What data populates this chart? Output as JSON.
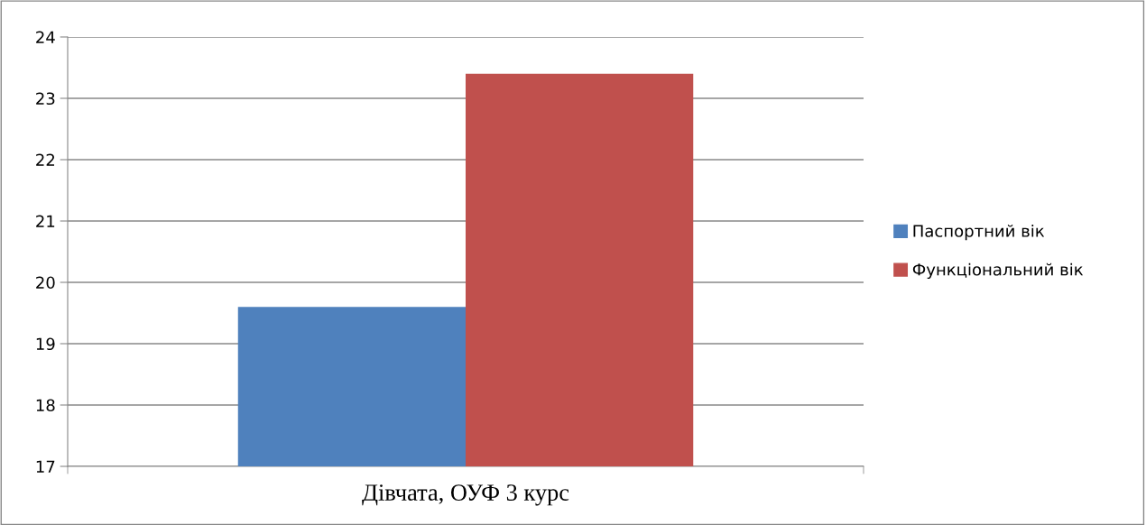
{
  "chart_data": {
    "type": "bar",
    "categories": [
      "Дівчата, ОУФ 3 курс"
    ],
    "series": [
      {
        "name": "Паспортний вік",
        "color": "#4f81bd",
        "values": [
          19.6
        ]
      },
      {
        "name": "Функціональний вік",
        "color": "#c0504d",
        "values": [
          23.4
        ]
      }
    ],
    "ylim": [
      17,
      24
    ],
    "yticks": [
      17,
      18,
      19,
      20,
      21,
      22,
      23,
      24
    ],
    "grid": "y",
    "legend": "right"
  }
}
